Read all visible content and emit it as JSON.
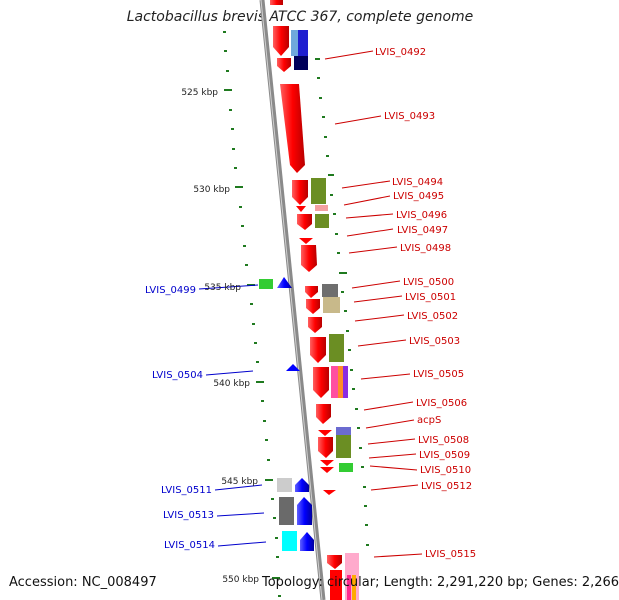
{
  "title": "Lactobacillus brevis ATCC 367, complete genome",
  "accession": "Accession: NC_008497",
  "topology": "Topology: circular; Length: 2,291,220 bp; Genes: 2,266",
  "ruler_labels": [
    "525 kbp",
    "530 kbp",
    "535 kbp",
    "540 kbp",
    "545 kbp",
    "550 kbp"
  ],
  "forward_genes": [
    "LVIS_0492",
    "LVIS_0493",
    "LVIS_0494",
    "LVIS_0495",
    "LVIS_0496",
    "LVIS_0497",
    "LVIS_0498",
    "LVIS_0500",
    "LVIS_0501",
    "LVIS_0502",
    "LVIS_0503",
    "LVIS_0505",
    "LVIS_0506",
    "acpS",
    "LVIS_0508",
    "LVIS_0509",
    "LVIS_0510",
    "LVIS_0512",
    "LVIS_0515"
  ],
  "reverse_genes": [
    "LVIS_0499",
    "LVIS_0504",
    "LVIS_0511",
    "LVIS_0513",
    "LVIS_0514"
  ],
  "colors": {
    "forward": "#ff0000",
    "reverse": "#0000ff",
    "backbone": "#888888"
  }
}
